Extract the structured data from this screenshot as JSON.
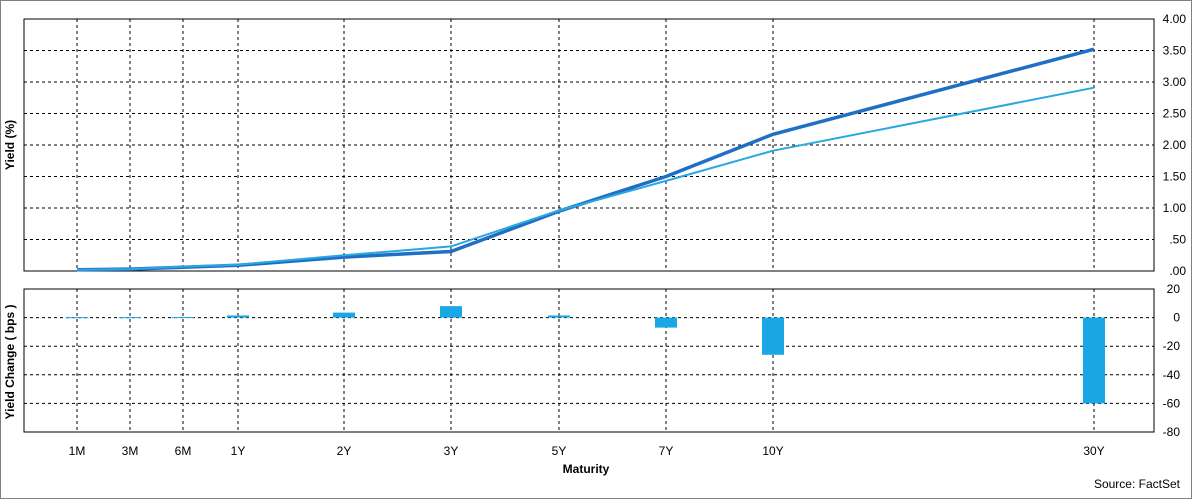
{
  "chart_data": [
    {
      "type": "line",
      "categories": [
        "1M",
        "3M",
        "6M",
        "1Y",
        "2Y",
        "3Y",
        "5Y",
        "7Y",
        "10Y",
        "30Y"
      ],
      "ylabel": "Yield (%)",
      "ylim": [
        0,
        4
      ],
      "y_ticks": [
        ".00",
        ".50",
        "1.00",
        "1.50",
        "2.00",
        "2.50",
        "3.00",
        "3.50",
        "4.00"
      ],
      "grid": true,
      "series": [
        {
          "values": [
            0.02,
            0.03,
            0.06,
            0.09,
            0.22,
            0.31,
            0.95,
            1.5,
            2.17,
            3.52
          ],
          "color": "#1f6fc4"
        },
        {
          "values": [
            0.02,
            0.03,
            0.07,
            0.1,
            0.25,
            0.39,
            0.96,
            1.43,
            1.91,
            2.91
          ],
          "color": "#2aa7df"
        }
      ]
    },
    {
      "type": "bar",
      "categories": [
        "1M",
        "3M",
        "6M",
        "1Y",
        "2Y",
        "3Y",
        "5Y",
        "7Y",
        "10Y",
        "30Y"
      ],
      "values": [
        0.3,
        0.3,
        0.4,
        1.5,
        3.5,
        8,
        1.5,
        -7,
        -26,
        -60
      ],
      "ylabel": "Yield Change ( bps )",
      "xlabel": "Maturity",
      "ylim": [
        -80,
        20
      ],
      "y_ticks": [
        "-80",
        "-60",
        "-40",
        "-20",
        "0",
        "20"
      ],
      "grid": true,
      "color": "#1aa7e6"
    }
  ],
  "source": "Source: FactSet"
}
